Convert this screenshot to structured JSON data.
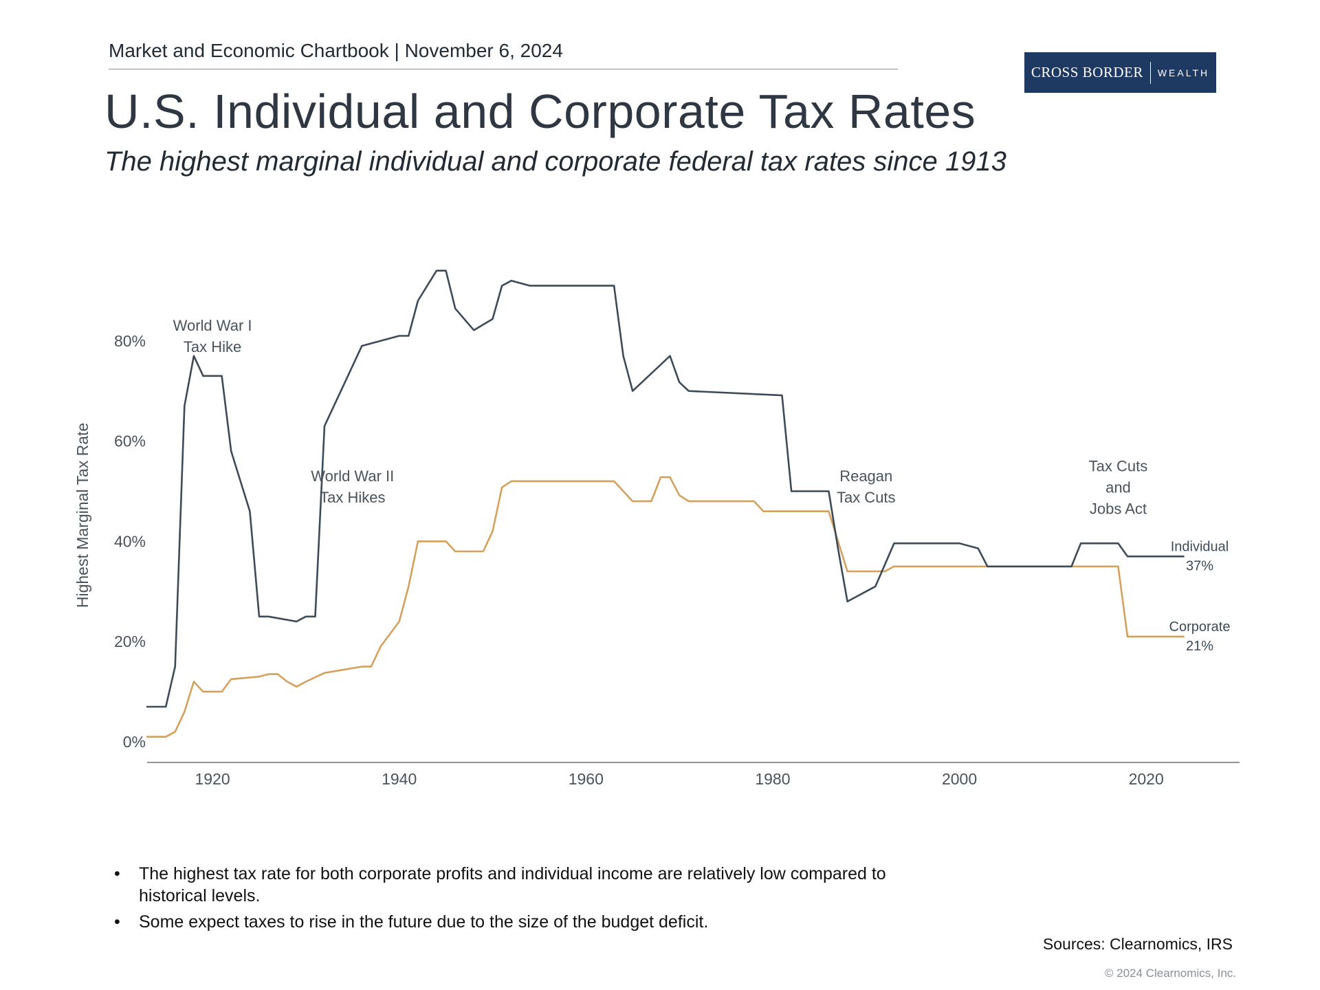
{
  "header": {
    "kicker": "Market and Economic Chartbook | November 6, 2024",
    "title": "U.S. Individual and Corporate Tax Rates",
    "subtitle": "The highest marginal individual and corporate federal tax rates since 1913"
  },
  "logo": {
    "brand": "CROSS BORDER",
    "suffix": "WEALTH",
    "bg_color": "#1e3a63"
  },
  "chart_data": {
    "type": "line",
    "title": "",
    "xlabel": "",
    "ylabel": "Highest Marginal Tax Rate",
    "xlim": [
      1913,
      2030
    ],
    "ylim": [
      0,
      100
    ],
    "x_ticks": [
      1920,
      1940,
      1960,
      1980,
      2000,
      2020
    ],
    "y_ticks": [
      0,
      20,
      40,
      60,
      80
    ],
    "y_tick_labels": [
      "0%",
      "20%",
      "40%",
      "60%",
      "80%"
    ],
    "grid": false,
    "series": [
      {
        "name": "Individual",
        "end_label": [
          "Individual",
          "37%"
        ],
        "color": "#3d4a57",
        "x": [
          1913,
          1915,
          1916,
          1917,
          1918,
          1919,
          1921,
          1922,
          1924,
          1925,
          1926,
          1929,
          1930,
          1931,
          1932,
          1936,
          1940,
          1941,
          1942,
          1944,
          1945,
          1946,
          1948,
          1950,
          1951,
          1952,
          1954,
          1963,
          1964,
          1965,
          1968,
          1969,
          1970,
          1971,
          1981,
          1982,
          1986,
          1987,
          1988,
          1991,
          1993,
          2000,
          2002,
          2003,
          2012,
          2013,
          2017,
          2018,
          2024
        ],
        "y": [
          7,
          7,
          15,
          67,
          77,
          73,
          73,
          58,
          46,
          25,
          25,
          24,
          25,
          25,
          63,
          79,
          81,
          81,
          88,
          94,
          94,
          86.45,
          82.13,
          84.36,
          91,
          92,
          91,
          91,
          77,
          70,
          75.25,
          77,
          71.75,
          70,
          69.125,
          50,
          50,
          38.5,
          28,
          31,
          39.6,
          39.6,
          38.6,
          35,
          35,
          39.6,
          39.6,
          37,
          37
        ]
      },
      {
        "name": "Corporate",
        "end_label": [
          "Corporate",
          "21%"
        ],
        "color": "#d4a05c",
        "x": [
          1913,
          1915,
          1916,
          1917,
          1918,
          1919,
          1921,
          1922,
          1925,
          1926,
          1927,
          1928,
          1929,
          1930,
          1932,
          1936,
          1937,
          1938,
          1940,
          1941,
          1942,
          1945,
          1946,
          1949,
          1950,
          1951,
          1952,
          1963,
          1965,
          1967,
          1968,
          1969,
          1970,
          1971,
          1978,
          1979,
          1986,
          1987,
          1988,
          1992,
          1993,
          2017,
          2018,
          2024
        ],
        "y": [
          1,
          1,
          2,
          6,
          12,
          10,
          10,
          12.5,
          13,
          13.5,
          13.5,
          12,
          11,
          12,
          13.75,
          15,
          15,
          19,
          24,
          31,
          40,
          40,
          38,
          38,
          42,
          50.75,
          52,
          52,
          48,
          48,
          52.8,
          52.8,
          49.2,
          48,
          48,
          46,
          46,
          40,
          34,
          34,
          35,
          35,
          21,
          21
        ]
      }
    ],
    "annotations": [
      {
        "lines": [
          "World War I",
          "Tax Hike"
        ],
        "x": 1920,
        "y": 82
      },
      {
        "lines": [
          "World War II",
          "Tax Hikes"
        ],
        "x": 1935,
        "y": 52
      },
      {
        "lines": [
          "Reagan",
          "Tax Cuts"
        ],
        "x": 1990,
        "y": 52
      },
      {
        "lines": [
          "Tax Cuts",
          "and",
          "Jobs Act"
        ],
        "x": 2017,
        "y": 54
      }
    ]
  },
  "bullets": [
    "The highest tax rate for both corporate profits and individual income are relatively low compared to historical levels.",
    "Some expect taxes to rise in the future due to the size of the budget deficit."
  ],
  "footer": {
    "sources": "Sources: Clearnomics, IRS",
    "copyright": "© 2024 Clearnomics, Inc."
  }
}
